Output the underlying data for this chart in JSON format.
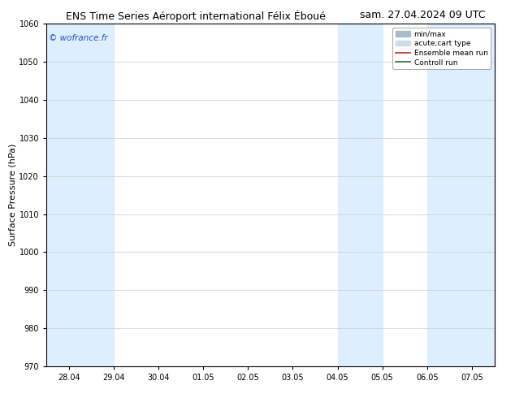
{
  "title_left": "ENS Time Series Aéroport international Félix Éboué",
  "title_right": "sam. 27.04.2024 09 UTC",
  "ylabel": "Surface Pressure (hPa)",
  "ylim": [
    970,
    1060
  ],
  "yticks": [
    970,
    980,
    990,
    1000,
    1010,
    1020,
    1030,
    1040,
    1050,
    1060
  ],
  "x_labels": [
    "28.04",
    "29.04",
    "30.04",
    "01.05",
    "02.05",
    "03.05",
    "04.05",
    "05.05",
    "06.05",
    "07.05"
  ],
  "x_values": [
    0,
    1,
    2,
    3,
    4,
    5,
    6,
    7,
    8,
    9
  ],
  "xlim": [
    -0.5,
    9.5
  ],
  "shaded_bands": [
    {
      "x_start": -0.5,
      "x_end": 1.0
    },
    {
      "x_start": 6.0,
      "x_end": 7.0
    },
    {
      "x_start": 8.0,
      "x_end": 9.5
    }
  ],
  "shade_color": "#ddeeff",
  "minmax_color": "#aabbcc",
  "acutecart_color": "#ccddee",
  "ensemble_mean_color": "#cc2222",
  "control_color": "#336633",
  "watermark": "© wofrance.fr",
  "watermark_color": "#2255bb",
  "legend_labels": [
    "min/max",
    "acute;cart type",
    "Ensemble mean run",
    "Controll run"
  ],
  "bg_color": "#ffffff",
  "title_fontsize": 9,
  "tick_fontsize": 7,
  "ylabel_fontsize": 8
}
